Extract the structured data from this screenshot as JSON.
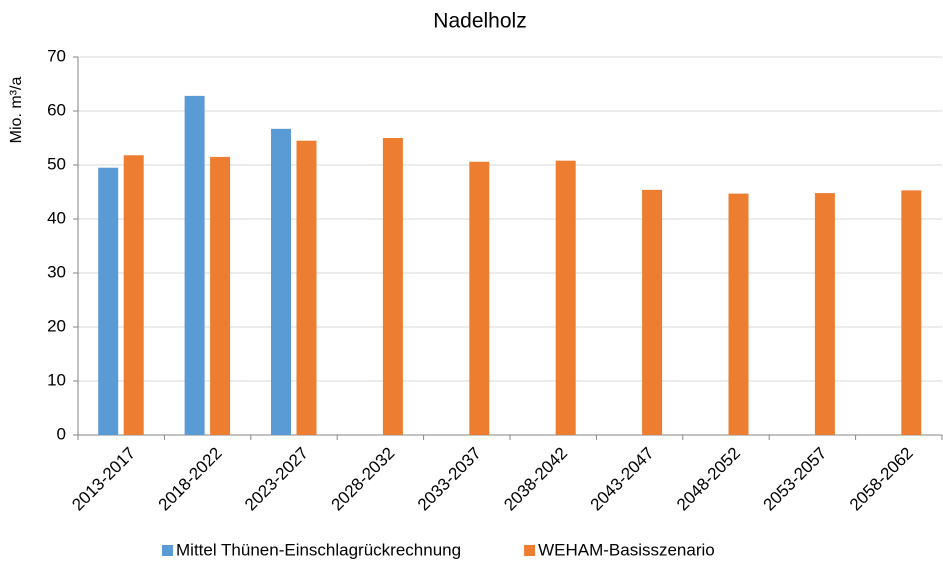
{
  "chart_data": {
    "type": "bar",
    "title": "Nadelholz",
    "y_label": "Mio. m³/a",
    "categories": [
      "2013-2017",
      "2018-2022",
      "2023-2027",
      "2028-2032",
      "2033-2037",
      "2038-2042",
      "2043-2047",
      "2048-2052",
      "2053-2057",
      "2058-2062"
    ],
    "series": [
      {
        "name": "Mittel Thünen-Einschlagrückrechnung",
        "color": "#5b9bd5",
        "values": [
          49.5,
          62.8,
          56.7,
          null,
          null,
          null,
          null,
          null,
          null,
          null
        ]
      },
      {
        "name": "WEHAM-Basisszenario",
        "color": "#ed7d31",
        "values": [
          51.8,
          51.5,
          54.5,
          55.0,
          50.6,
          50.8,
          45.4,
          44.7,
          44.8,
          45.3
        ]
      }
    ],
    "ylim": [
      0,
      70
    ],
    "yticks": [
      0,
      10,
      20,
      30,
      40,
      50,
      60,
      70
    ],
    "grid": true,
    "legend": "bottom"
  }
}
